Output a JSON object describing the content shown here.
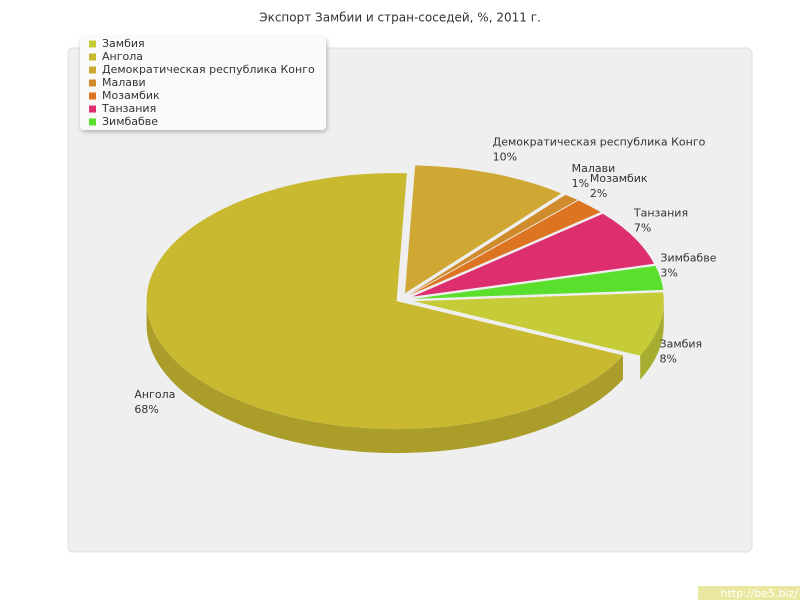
{
  "chart_data": {
    "type": "pie",
    "title": "Экспорт Замбии и стран-соседей, %, 2011 г.",
    "categories": [
      "Замбия",
      "Ангола",
      "Демократическая республика Конго",
      "Малави",
      "Мозамбик",
      "Танзания",
      "Зимбабве"
    ],
    "values": [
      8,
      68,
      10,
      1,
      2,
      7,
      3
    ],
    "value_labels": [
      "8%",
      "68%",
      "10%",
      "1%",
      "2%",
      "7%",
      "3%"
    ],
    "colors": [
      "#c5cc38",
      "#c8b930",
      "#cea832",
      "#d08c2c",
      "#dc7422",
      "#dd2e70",
      "#5ae02c"
    ],
    "legend": "top-left"
  },
  "watermark": "http://be5.biz/"
}
